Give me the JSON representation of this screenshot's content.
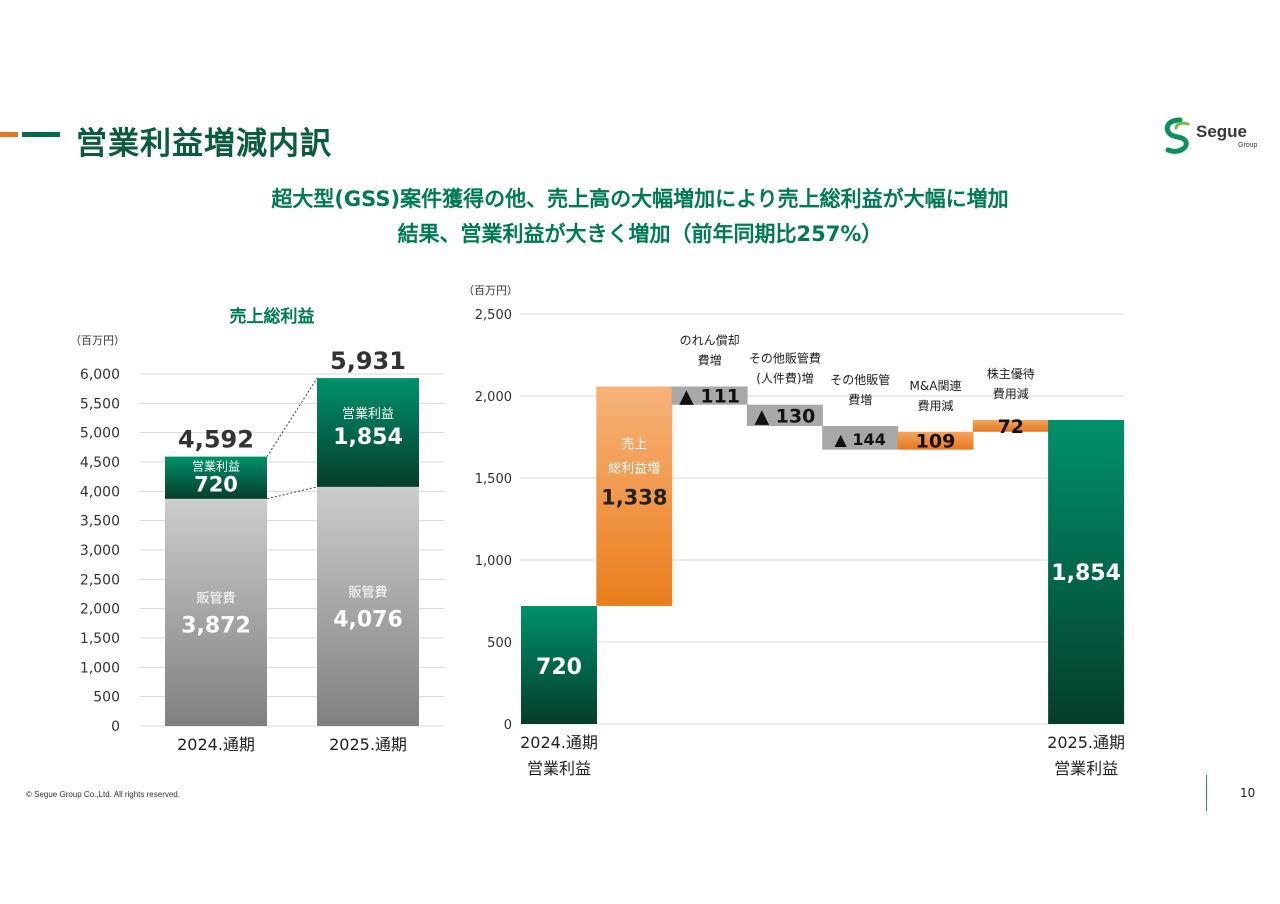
{
  "page": {
    "title": "営業利益増減内訳",
    "subtitle_line1": "超大型(GSS)案件獲得の他、売上高の大幅増加により売上総利益が大幅に増加",
    "subtitle_line2": "結果、営業利益が大きく増加（前年同期比257%）",
    "footer": "© Segue Group Co.,Ltd. All rights reserved.",
    "page_number": "10",
    "logo_text": "Segue",
    "logo_sub": "Group"
  },
  "colors": {
    "green_accent": "#007A55",
    "dark_green": "#0B5B3E",
    "orange": "#E8761E",
    "gray_bar": "#A8A8A8"
  },
  "chart_data": [
    {
      "type": "bar",
      "title": "売上総利益",
      "ylabel": "（百万円）",
      "ylim": [
        0,
        6000
      ],
      "yticks": [
        "0",
        "500",
        "1,000",
        "1,500",
        "2,000",
        "2,500",
        "3,000",
        "3,500",
        "4,000",
        "4,500",
        "5,000",
        "5,500",
        "6,000"
      ],
      "categories": [
        "2024.通期",
        "2025.通期"
      ],
      "series": [
        {
          "name": "販管費",
          "values": [
            3872,
            4076
          ],
          "labels": [
            "3,872",
            "4,076"
          ]
        },
        {
          "name": "営業利益",
          "values": [
            720,
            1854
          ],
          "labels": [
            "720",
            "1,854"
          ]
        }
      ],
      "totals": [
        4592,
        5931
      ],
      "total_labels": [
        "4,592",
        "5,931"
      ]
    },
    {
      "type": "bar",
      "subtype": "waterfall",
      "ylabel": "（百万円）",
      "ylim": [
        0,
        2500
      ],
      "yticks": [
        "0",
        "500",
        "1,000",
        "1,500",
        "2,000",
        "2,500"
      ],
      "steps": [
        {
          "label_line1": "2024.通期",
          "label_line2": "営業利益",
          "kind": "total",
          "value": 720,
          "display": "720"
        },
        {
          "label_line1": "売上",
          "label_line2": "総利益増",
          "kind": "increase",
          "value": 1338,
          "display": "1,338"
        },
        {
          "label_line1": "のれん償却",
          "label_line2": "費増",
          "kind": "decrease",
          "value": -111,
          "display": "▲ 111"
        },
        {
          "label_line1": "その他販管費",
          "label_line2": "(人件費)増",
          "kind": "decrease",
          "value": -130,
          "display": "▲ 130"
        },
        {
          "label_line1": "その他販管",
          "label_line2": "費増",
          "kind": "decrease",
          "value": -144,
          "display": "▲ 144"
        },
        {
          "label_line1": "M&A関連",
          "label_line2": "費用減",
          "kind": "increase",
          "value": 109,
          "display": "109"
        },
        {
          "label_line1": "株主優待",
          "label_line2": "費用減",
          "kind": "increase",
          "value": 72,
          "display": "72"
        },
        {
          "label_line1": "2025.通期",
          "label_line2": "営業利益",
          "kind": "total",
          "value": 1854,
          "display": "1,854"
        }
      ]
    }
  ]
}
